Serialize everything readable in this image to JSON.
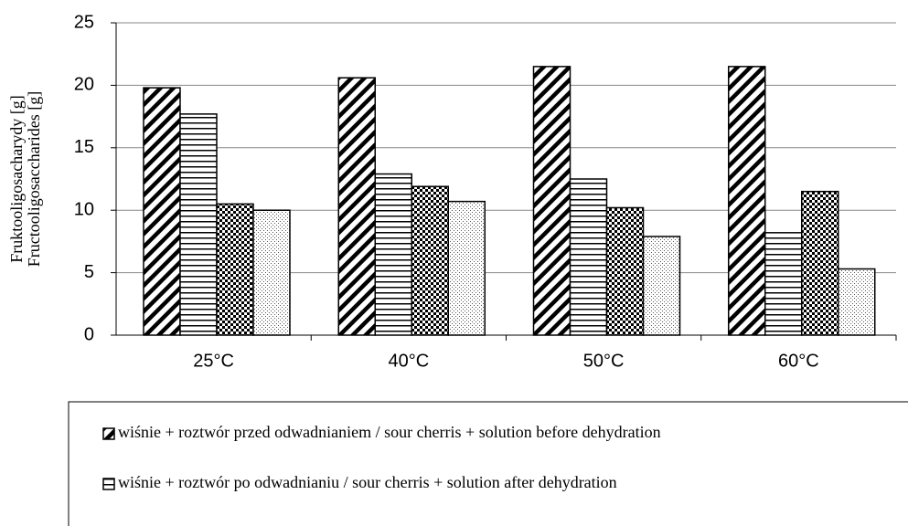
{
  "chart_data": {
    "type": "bar",
    "y_label": [
      "Fruktooligosacharydy [g]",
      "Fructooligosaccharides [g]"
    ],
    "categories": [
      "25°C",
      "40°C",
      "50°C",
      "60°C"
    ],
    "series": [
      {
        "name": "wiśnie + roztwór przed odwadnianiem / sour cherris + solution before dehydration",
        "color": "#000000",
        "pattern": "diagonal",
        "values": [
          19.8,
          20.6,
          21.5,
          21.5
        ]
      },
      {
        "name": "wiśnie + roztwór po odwadnianiu / sour cherris + solution after dehydration",
        "color": "#000000",
        "pattern": "horizontal",
        "values": [
          17.7,
          12.9,
          12.5,
          8.2
        ]
      },
      {
        "color": "#000000",
        "pattern": "checker",
        "values": [
          10.5,
          11.9,
          10.2,
          11.5
        ]
      },
      {
        "color": "#000000",
        "pattern": "dots",
        "values": [
          10.0,
          10.7,
          7.9,
          5.3
        ]
      }
    ],
    "ylim": [
      0,
      25
    ],
    "yticks": [
      0,
      5,
      10,
      15,
      20,
      25
    ],
    "grid": true
  }
}
